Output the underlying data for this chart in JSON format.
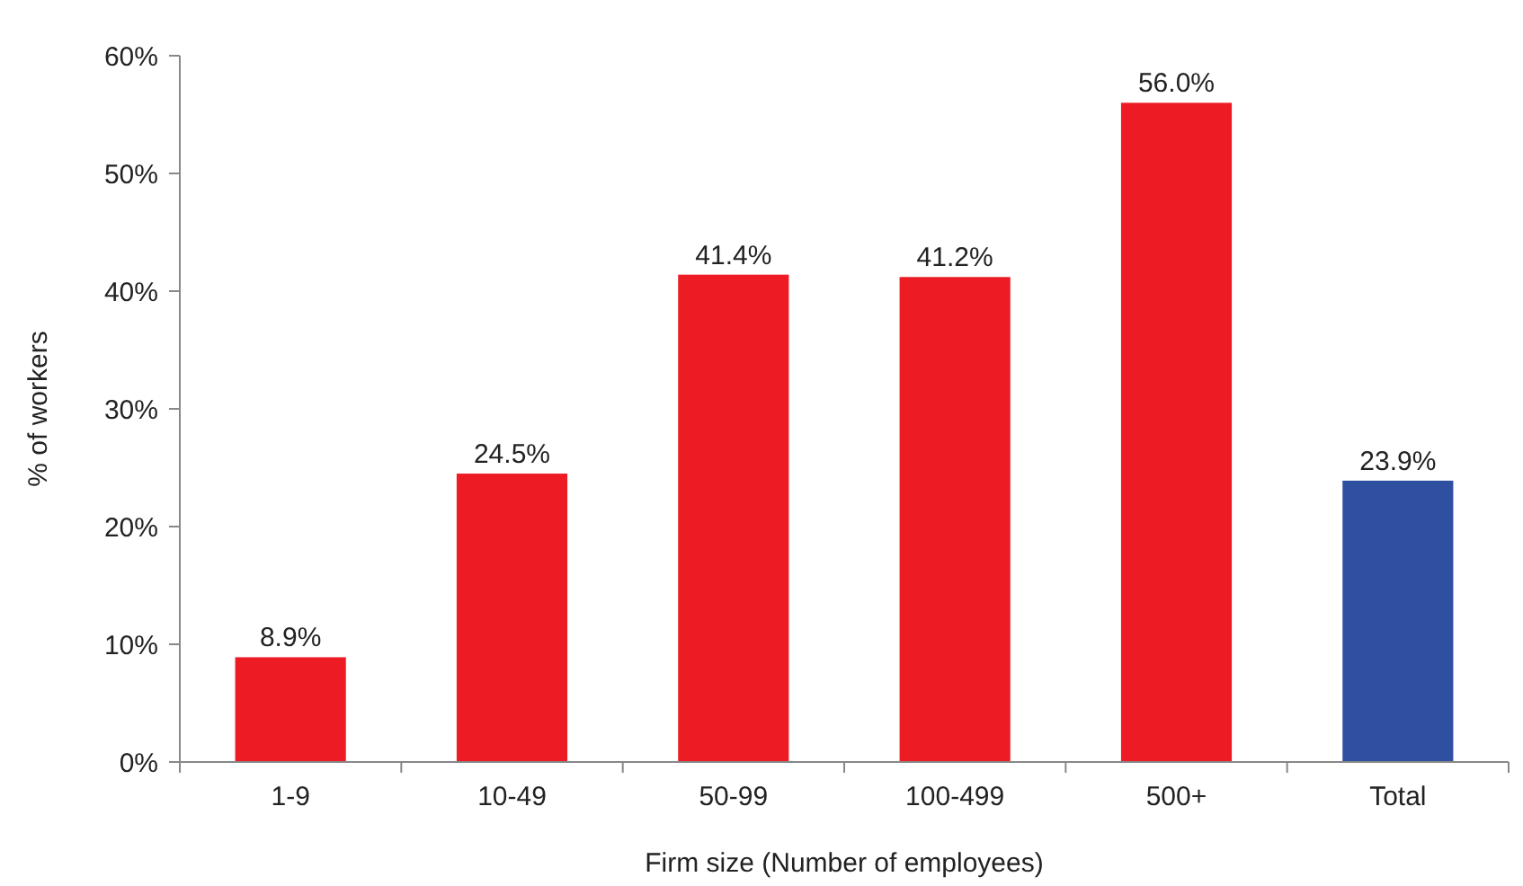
{
  "chart_data": {
    "type": "bar",
    "xlabel": "Firm size (Number of employees)",
    "ylabel": "% of workers",
    "categories": [
      "1-9",
      "10-49",
      "50-99",
      "100-499",
      "500+",
      "Total"
    ],
    "values": [
      8.9,
      24.5,
      41.4,
      41.2,
      56.0,
      23.9
    ],
    "colors": [
      "#ed1c24",
      "#ed1c24",
      "#ed1c24",
      "#ed1c24",
      "#ed1c24",
      "#2f4fa0"
    ],
    "value_labels": [
      "8.9%",
      "24.5%",
      "41.4%",
      "41.2%",
      "56.0%",
      "23.9%"
    ],
    "ylim": [
      0,
      60
    ],
    "yticks": [
      {
        "value": 0,
        "label": "0%"
      },
      {
        "value": 10,
        "label": "10%"
      },
      {
        "value": 20,
        "label": "20%"
      },
      {
        "value": 30,
        "label": "30%"
      },
      {
        "value": 40,
        "label": "40%"
      },
      {
        "value": 50,
        "label": "50%"
      },
      {
        "value": 60,
        "label": "60%"
      }
    ],
    "grid": false
  }
}
